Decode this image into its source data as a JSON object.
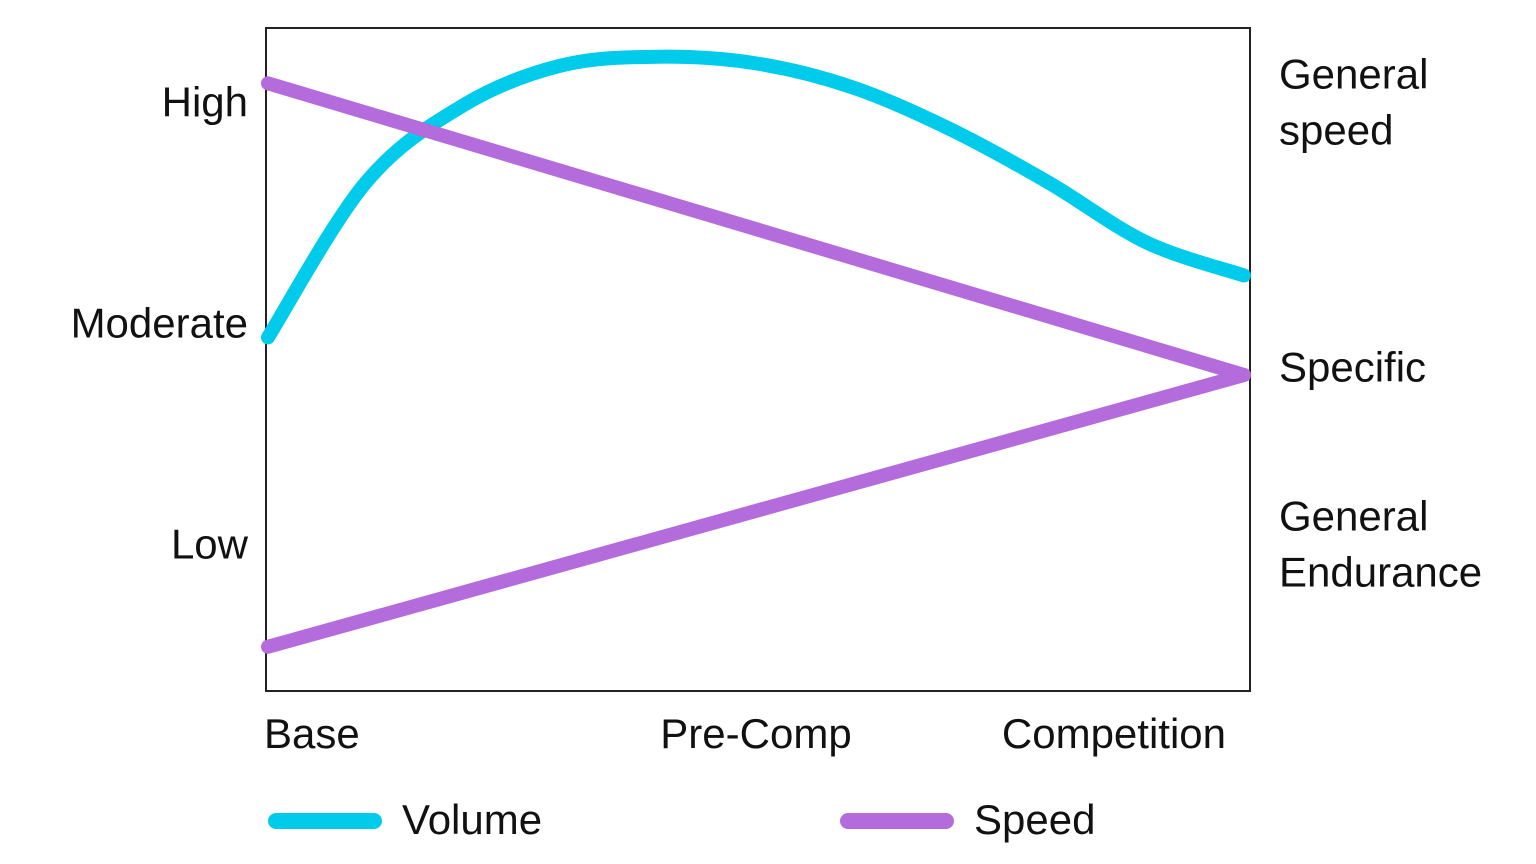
{
  "chart_data": {
    "type": "line",
    "x_categories": [
      "Base",
      "Pre-Comp",
      "Competition"
    ],
    "x_range": [
      0,
      2
    ],
    "y_range": [
      0,
      3
    ],
    "y_ticks": [
      {
        "label": "High",
        "value": 2.65
      },
      {
        "label": "Moderate",
        "value": 1.65
      },
      {
        "label": "Low",
        "value": 0.65
      }
    ],
    "right_labels": [
      {
        "lines": [
          "General",
          "speed"
        ],
        "value": 2.65
      },
      {
        "lines": [
          "Specific"
        ],
        "value": 1.45
      },
      {
        "lines": [
          "General",
          "Endurance"
        ],
        "value": 0.65
      }
    ],
    "series": [
      {
        "name": "Volume",
        "color": "#00CBEB",
        "x": [
          0,
          0.2,
          0.4,
          0.6,
          0.8,
          1.0,
          1.2,
          1.4,
          1.6,
          1.8,
          2.0
        ],
        "y": [
          1.6,
          2.3,
          2.65,
          2.83,
          2.87,
          2.84,
          2.73,
          2.54,
          2.3,
          2.03,
          1.88
        ]
      },
      {
        "name": "Speed",
        "color": "#B46BDB",
        "x": [
          0,
          2
        ],
        "y": [
          2.75,
          1.43
        ]
      },
      {
        "name": "Speed",
        "color": "#B46BDB",
        "x": [
          0,
          2
        ],
        "y": [
          0.2,
          1.43
        ]
      }
    ],
    "legend": [
      {
        "name": "Volume",
        "color": "#00CBEB"
      },
      {
        "name": "Speed",
        "color": "#B46BDB"
      }
    ],
    "legend_position": "bottom",
    "grid": false
  }
}
